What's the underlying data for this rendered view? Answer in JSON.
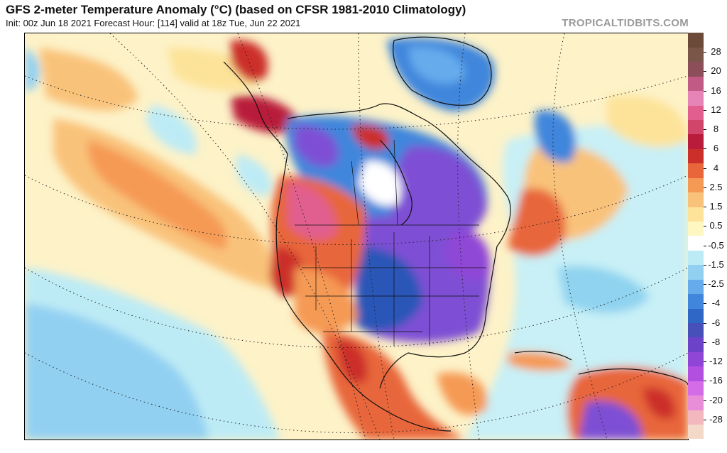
{
  "header": {
    "title": "GFS 2-meter Temperature Anomaly (°C) (based on CFSR 1981-2010 Climatology)",
    "subtitle": "Init: 00z Jun 18 2021   Forecast Hour: [114]   valid at 18z Tue, Jun 22 2021",
    "brand": "TROPICALTIDBITS.COM"
  },
  "colorbar": {
    "bins": [
      "#f5d9c8",
      "#f3b8bd",
      "#e88ed9",
      "#d46ce8",
      "#b34fe0",
      "#8f46d6",
      "#6b42c8",
      "#4650b8",
      "#2f67c6",
      "#3f86dc",
      "#66acec",
      "#92d0f2",
      "#bdebf5",
      "#ffffff",
      "#fff7c2",
      "#fde39a",
      "#f9c27a",
      "#f59a55",
      "#e8663a",
      "#cc2e2a",
      "#b91c3a",
      "#d2456a",
      "#e15e8e",
      "#e684b8",
      "#c25a86",
      "#8c4f5a",
      "#7a5648",
      "#6b4a3a"
    ],
    "labels": [
      "-28",
      "-20",
      "-16",
      "-12",
      "-8",
      "-6",
      "-4",
      "-2.5",
      "-1.5",
      "-0.5",
      "0.5",
      "1.5",
      "2.5",
      "4",
      "6",
      "8",
      "12",
      "16",
      "20",
      "28"
    ]
  },
  "palette": {
    "ocean_base": "#fef3c8",
    "cyan": "#c8f0f6",
    "light_blue": "#8fd3f0",
    "blue": "#3f86dc",
    "dark_blue": "#2c56b8",
    "purple": "#7e4fd4",
    "orange": "#f4a261",
    "red_orange": "#e8663a",
    "red": "#c8323a",
    "pink": "#e084b8",
    "brown_red": "#a8343c"
  }
}
